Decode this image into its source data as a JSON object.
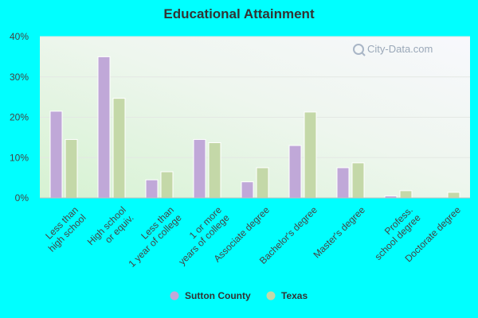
{
  "chart_data": {
    "type": "bar",
    "title": "Educational Attainment",
    "categories": [
      [
        "Less than",
        "high school"
      ],
      [
        "High school",
        "or equiv."
      ],
      [
        "Less than",
        "1 year of college"
      ],
      [
        "1 or more",
        "years of college"
      ],
      [
        "Associate degree"
      ],
      [
        "Bachelor's degree"
      ],
      [
        "Master's degree"
      ],
      [
        "Profess.",
        "school degree"
      ],
      [
        "Doctorate degree"
      ]
    ],
    "series": [
      {
        "name": "Sutton County",
        "color": "#c0a8d8",
        "values": [
          21.5,
          35.0,
          4.5,
          14.5,
          4.0,
          13.0,
          7.5,
          0.5,
          0.0
        ]
      },
      {
        "name": "Texas",
        "color": "#c4d8a8",
        "values": [
          14.5,
          24.7,
          6.5,
          13.7,
          7.5,
          21.3,
          8.7,
          1.8,
          1.4
        ]
      }
    ],
    "yticks": [
      "0%",
      "10%",
      "20%",
      "30%",
      "40%"
    ],
    "ylim": [
      0,
      40
    ],
    "grid": true,
    "legend": "bottom"
  },
  "watermark": "City-Data.com"
}
